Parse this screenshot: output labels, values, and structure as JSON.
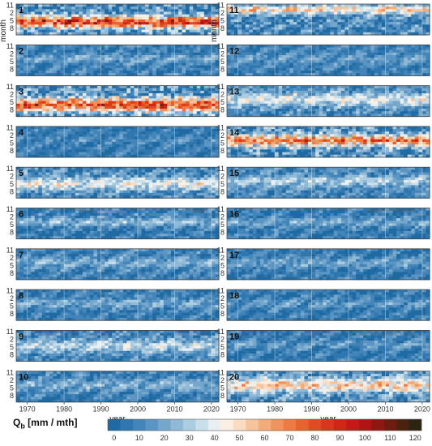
{
  "chart_data": {
    "type": "heatmap",
    "x_axis": {
      "label": "year",
      "ticks": [
        "1970",
        "1980",
        "1990",
        "2000",
        "2010",
        "2020"
      ],
      "range": [
        1967,
        2022
      ]
    },
    "y_axis": {
      "label": "month",
      "ticks": [
        "11",
        "2",
        "5",
        "8"
      ],
      "range_months": [
        11,
        10
      ]
    },
    "colorbar": {
      "title_main": "Q",
      "title_sub": "b",
      "title_unit": " [mm / mth]",
      "ticks": [
        "0",
        "10",
        "20",
        "30",
        "40",
        "50",
        "60",
        "70",
        "80",
        "90",
        "100",
        "110",
        "120"
      ],
      "range": [
        0,
        125
      ],
      "step": 5,
      "colors": [
        "#1f6aa3",
        "#2f77ae",
        "#4485b9",
        "#5b95c3",
        "#75a7cc",
        "#90b9d6",
        "#acccdf",
        "#cadfea",
        "#e8eff2",
        "#fbefe3",
        "#f9dcc2",
        "#f6c49c",
        "#f3ab7a",
        "#f0925b",
        "#ec7a41",
        "#e7622d",
        "#e04c22",
        "#d8371b",
        "#d02618",
        "#c31a17",
        "#b21415",
        "#8f1712",
        "#6e1c10",
        "#4a2210",
        "#2a2410"
      ]
    },
    "panels": [
      {
        "id": "1",
        "col": 0,
        "row": 0,
        "base": 10,
        "band_center": 6.5,
        "band_width": 1.6,
        "band_peak": 75
      },
      {
        "id": "2",
        "col": 0,
        "row": 1,
        "base": 10,
        "band_center": 5,
        "band_width": 1.0,
        "band_peak": 12
      },
      {
        "id": "3",
        "col": 0,
        "row": 2,
        "base": 12,
        "band_center": 7,
        "band_width": 1.8,
        "band_peak": 68
      },
      {
        "id": "4",
        "col": 0,
        "row": 3,
        "base": 8,
        "band_center": 5,
        "band_width": 1.0,
        "band_peak": 5
      },
      {
        "id": "5",
        "col": 0,
        "row": 4,
        "base": 10,
        "band_center": 6,
        "band_width": 1.8,
        "band_peak": 32
      },
      {
        "id": "6",
        "col": 0,
        "row": 5,
        "base": 8,
        "band_center": 5,
        "band_width": 1.2,
        "band_peak": 18
      },
      {
        "id": "7",
        "col": 0,
        "row": 6,
        "base": 10,
        "band_center": 5,
        "band_width": 1.4,
        "band_peak": 14
      },
      {
        "id": "8",
        "col": 0,
        "row": 7,
        "base": 8,
        "band_center": 5,
        "band_width": 1.4,
        "band_peak": 14
      },
      {
        "id": "9",
        "col": 0,
        "row": 8,
        "base": 10,
        "band_center": 5.5,
        "band_width": 1.8,
        "band_peak": 24
      },
      {
        "id": "10",
        "col": 0,
        "row": 9,
        "base": 10,
        "band_center": 5,
        "band_width": 1.4,
        "band_peak": 14
      },
      {
        "id": "11",
        "col": 1,
        "row": 0,
        "base": 12,
        "band_center": 1.7,
        "band_width": 1.2,
        "band_peak": 42
      },
      {
        "id": "12",
        "col": 1,
        "row": 1,
        "base": 10,
        "band_center": 5,
        "band_width": 1.2,
        "band_peak": 8
      },
      {
        "id": "13",
        "col": 1,
        "row": 2,
        "base": 12,
        "band_center": 5,
        "band_width": 1.8,
        "band_peak": 28
      },
      {
        "id": "14",
        "col": 1,
        "row": 3,
        "base": 12,
        "band_center": 5,
        "band_width": 1.5,
        "band_peak": 60
      },
      {
        "id": "15",
        "col": 1,
        "row": 4,
        "base": 12,
        "band_center": 5,
        "band_width": 1.4,
        "band_peak": 20
      },
      {
        "id": "16",
        "col": 1,
        "row": 5,
        "base": 8,
        "band_center": 5,
        "band_width": 1.2,
        "band_peak": 14
      },
      {
        "id": "17",
        "col": 1,
        "row": 6,
        "base": 8,
        "band_center": 5,
        "band_width": 1.4,
        "band_peak": 12
      },
      {
        "id": "18",
        "col": 1,
        "row": 7,
        "base": 8,
        "band_center": 5,
        "band_width": 1.2,
        "band_peak": 10
      },
      {
        "id": "19",
        "col": 1,
        "row": 8,
        "base": 8,
        "band_center": 5,
        "band_width": 1.2,
        "band_peak": 10
      },
      {
        "id": "20",
        "col": 1,
        "row": 9,
        "base": 14,
        "band_center": 5,
        "band_width": 1.8,
        "band_peak": 40
      }
    ]
  }
}
